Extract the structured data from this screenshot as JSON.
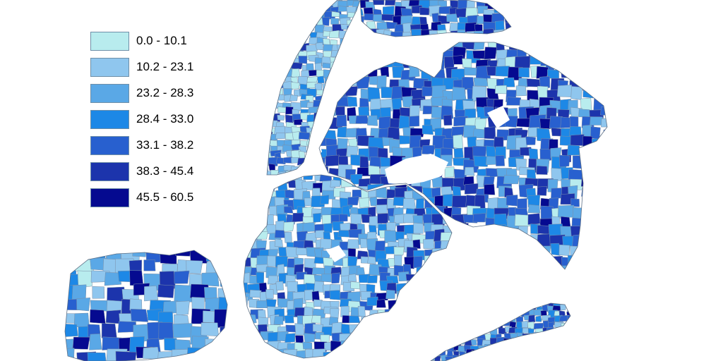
{
  "legend": {
    "classes": [
      {
        "label": "0.0 - 10.1",
        "color": "#b8ecee"
      },
      {
        "label": "10.2 - 23.1",
        "color": "#8fc6ee"
      },
      {
        "label": "23.2 - 28.3",
        "color": "#5aa8e6"
      },
      {
        "label": "28.4 - 33.0",
        "color": "#1d88e6"
      },
      {
        "label": "33.1 - 38.2",
        "color": "#2860cf"
      },
      {
        "label": "38.3 - 45.4",
        "color": "#1c34ac"
      },
      {
        "label": "45.5 - 60.5",
        "color": "#050a90"
      }
    ]
  },
  "map": {
    "regions": [
      "manhattan",
      "bronx",
      "queens",
      "brooklyn",
      "staten-island",
      "rockaway"
    ],
    "tract_outline_color": "#7a8fa8",
    "background_color": "#ffffff"
  }
}
